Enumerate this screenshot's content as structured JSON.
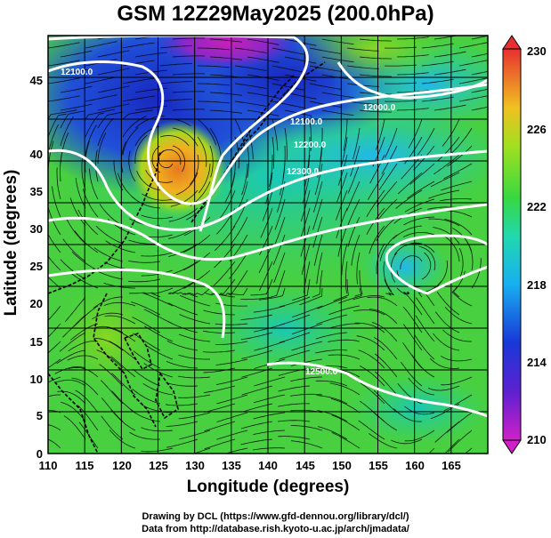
{
  "title": "GSM 12Z29May2025 (200.0hPa)",
  "axes": {
    "xlabel": "Longitude (degrees)",
    "ylabel": "Latitude  (degrees)",
    "x_ticks": [
      "110",
      "115",
      "120",
      "125",
      "130",
      "135",
      "140",
      "145",
      "150",
      "155",
      "160",
      "165"
    ],
    "y_ticks": [
      "0",
      "5",
      "10",
      "15",
      "20",
      "25",
      "30",
      "35",
      "40",
      "45"
    ],
    "xlim": [
      110,
      170
    ],
    "ylim": [
      0,
      50
    ]
  },
  "colorbar": {
    "ticks": [
      "230",
      "226",
      "222",
      "218",
      "214",
      "210"
    ],
    "range": [
      210,
      230
    ],
    "colors": [
      "#c81cc0",
      "#2030c8",
      "#18a8f0",
      "#20d8c0",
      "#40d848",
      "#98e020",
      "#e8c020",
      "#e87828",
      "#e83030"
    ]
  },
  "contour_labels": [
    "12100.0",
    "12000.0",
    "12100.0",
    "12200.0",
    "12300.0",
    "12500.0"
  ],
  "credits": {
    "line1": "Drawing by DCL (https://www.gfd-dennou.org/library/dcl/)",
    "line2": "Data from http://database.rish.kyoto-u.ac.jp/arch/jmadata/"
  }
}
